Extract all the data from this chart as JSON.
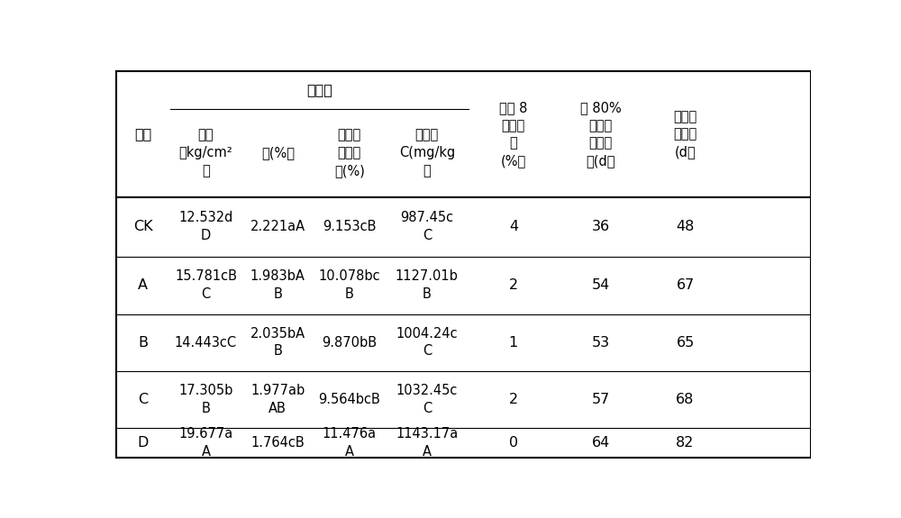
{
  "col_span_label": "采收时",
  "header_proc": "处理",
  "header_hardness": "硬度\n（kg/cm²\n）",
  "header_acid": "酸(%）",
  "header_sugar": "可溶性\n总糖含\n量(%)",
  "header_vitc": "维生素\nC(mg/kg\n）",
  "header_soft8": "贮藏 8\n天软果\n率\n(%）",
  "header_80pct": "达 80%\n软果实\n贮藏天\n数(d）",
  "header_maxday": "最长贮\n藏天数\n(d）",
  "rows": [
    {
      "label": "CK",
      "col1": "12.532d\nD",
      "col2": "2.221aA",
      "col3": "9.153cB",
      "col4": "987.45c\nC",
      "col5": "4",
      "col6": "36",
      "col7": "48"
    },
    {
      "label": "A",
      "col1": "15.781cB\nC",
      "col2": "1.983bA\nB",
      "col3": "10.078bc\nB",
      "col4": "1127.01b\nB",
      "col5": "2",
      "col6": "54",
      "col7": "67"
    },
    {
      "label": "B",
      "col1": "14.443cC",
      "col2": "2.035bA\nB",
      "col3": "9.870bB",
      "col4": "1004.24c\nC",
      "col5": "1",
      "col6": "53",
      "col7": "65"
    },
    {
      "label": "C",
      "col1": "17.305b\nB",
      "col2": "1.977ab\nAB",
      "col3": "9.564bcB",
      "col4": "1032.45c\nC",
      "col5": "2",
      "col6": "57",
      "col7": "68"
    },
    {
      "label": "D",
      "col1": "19.677a\nA",
      "col2": "1.764cB",
      "col3": "11.476a\nA",
      "col4": "1143.17a\nA",
      "col5": "0",
      "col6": "64",
      "col7": "82"
    }
  ],
  "col_lefts": [
    0.05,
    0.82,
    1.85,
    2.88,
    3.9,
    5.1,
    6.38,
    7.6,
    8.8
  ],
  "col_rights": [
    0.82,
    1.85,
    2.88,
    3.9,
    5.1,
    6.38,
    7.6,
    8.8,
    10.0
  ],
  "row_tops": [
    5.62,
    5.08,
    3.8,
    2.95,
    2.12,
    1.3,
    0.48,
    0.05
  ],
  "lw_thick": 1.5,
  "lw_thin": 0.8,
  "bg_color": "#ffffff",
  "text_color": "#000000",
  "font_size": 10.5,
  "font_size_header": 11.5
}
